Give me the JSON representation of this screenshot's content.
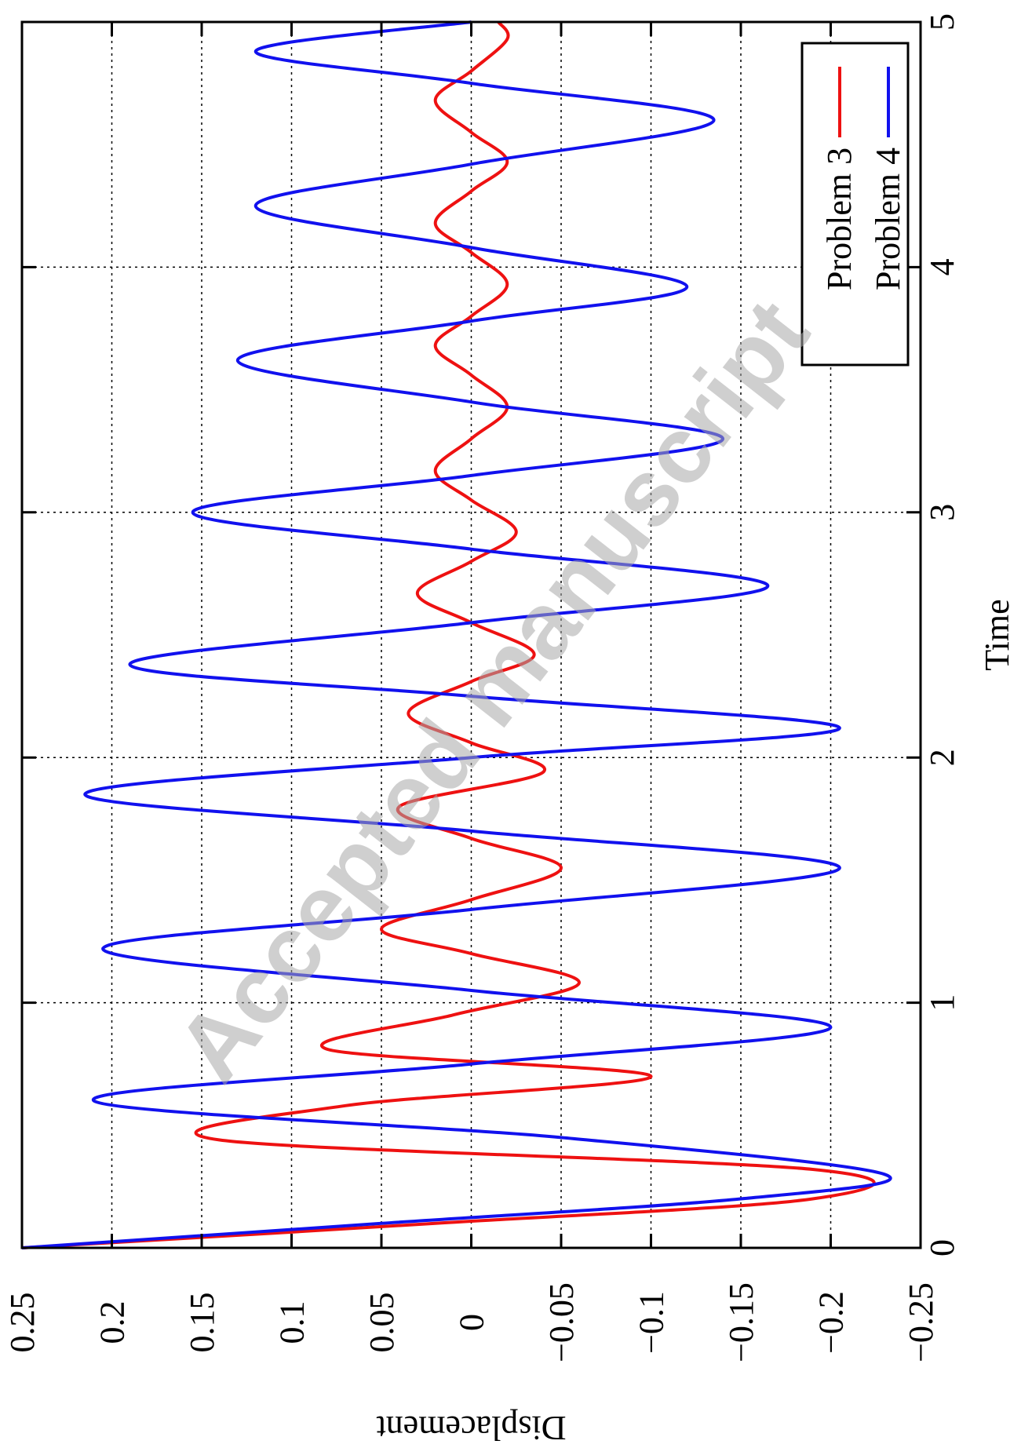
{
  "watermark": "Accepted manuscript",
  "chart_data": {
    "type": "line",
    "title": "",
    "xlabel": "Time",
    "ylabel": "Displacement",
    "xlim": [
      0,
      5
    ],
    "ylim": [
      -0.25,
      0.25
    ],
    "x_ticks": [
      "0",
      "1",
      "2",
      "3",
      "4",
      "5"
    ],
    "y_ticks": [
      "0.25",
      "0.2",
      "0.15",
      "0.1",
      "0.05",
      "0",
      "−0.05",
      "−0.1",
      "−0.15",
      "−0.2",
      "−0.25"
    ],
    "grid": true,
    "legend_position": "top-right",
    "orientation": "rotated 90 degrees counter-clockwise",
    "series": [
      {
        "name": "Problem 3",
        "color": "#ee1111",
        "x": [
          0,
          0.1,
          0.2,
          0.32,
          0.44,
          0.58,
          0.7,
          0.81,
          0.95,
          1.08,
          1.2,
          1.3,
          1.42,
          1.55,
          1.67,
          1.8,
          1.94,
          2.06,
          2.18,
          2.31,
          2.42,
          2.55,
          2.67,
          2.8,
          2.92,
          3.05,
          3.17,
          3.3,
          3.43,
          3.56,
          3.68,
          3.8,
          3.93,
          4.06,
          4.18,
          4.31,
          4.43,
          4.55,
          4.68,
          4.8,
          4.93,
          5.0
        ],
        "y": [
          0.25,
          0.02,
          -0.19,
          -0.19,
          0.14,
          0.07,
          -0.1,
          0.08,
          0.01,
          -0.06,
          0.0,
          0.05,
          0.0,
          -0.05,
          0.0,
          0.04,
          -0.04,
          0.0,
          0.035,
          0.0,
          -0.035,
          0.0,
          0.03,
          0.0,
          -0.025,
          0.0,
          0.02,
          0.0,
          -0.02,
          0.0,
          0.02,
          0.0,
          -0.02,
          0.0,
          0.02,
          0.0,
          -0.02,
          0.0,
          0.02,
          0.0,
          -0.02,
          -0.015
        ]
      },
      {
        "name": "Problem 4",
        "color": "#1111ee",
        "x": [
          0,
          0.1,
          0.2,
          0.3,
          0.45,
          0.6,
          0.75,
          0.9,
          1.05,
          1.22,
          1.38,
          1.55,
          1.7,
          1.85,
          2.0,
          2.12,
          2.25,
          2.38,
          2.55,
          2.7,
          2.85,
          3.0,
          3.15,
          3.3,
          3.45,
          3.62,
          3.78,
          3.92,
          4.08,
          4.25,
          4.42,
          4.6,
          4.75,
          4.88,
          5.0
        ],
        "y": [
          0.25,
          0.05,
          -0.15,
          -0.23,
          -0.05,
          0.21,
          0.0,
          -0.2,
          0.0,
          0.205,
          0.0,
          -0.205,
          0.0,
          0.215,
          0.0,
          -0.205,
          0.0,
          0.19,
          0.0,
          -0.165,
          0.0,
          0.155,
          0.0,
          -0.14,
          0.0,
          0.13,
          0.0,
          -0.12,
          0.0,
          0.12,
          0.0,
          -0.135,
          0.0,
          0.12,
          0.0
        ]
      }
    ]
  }
}
